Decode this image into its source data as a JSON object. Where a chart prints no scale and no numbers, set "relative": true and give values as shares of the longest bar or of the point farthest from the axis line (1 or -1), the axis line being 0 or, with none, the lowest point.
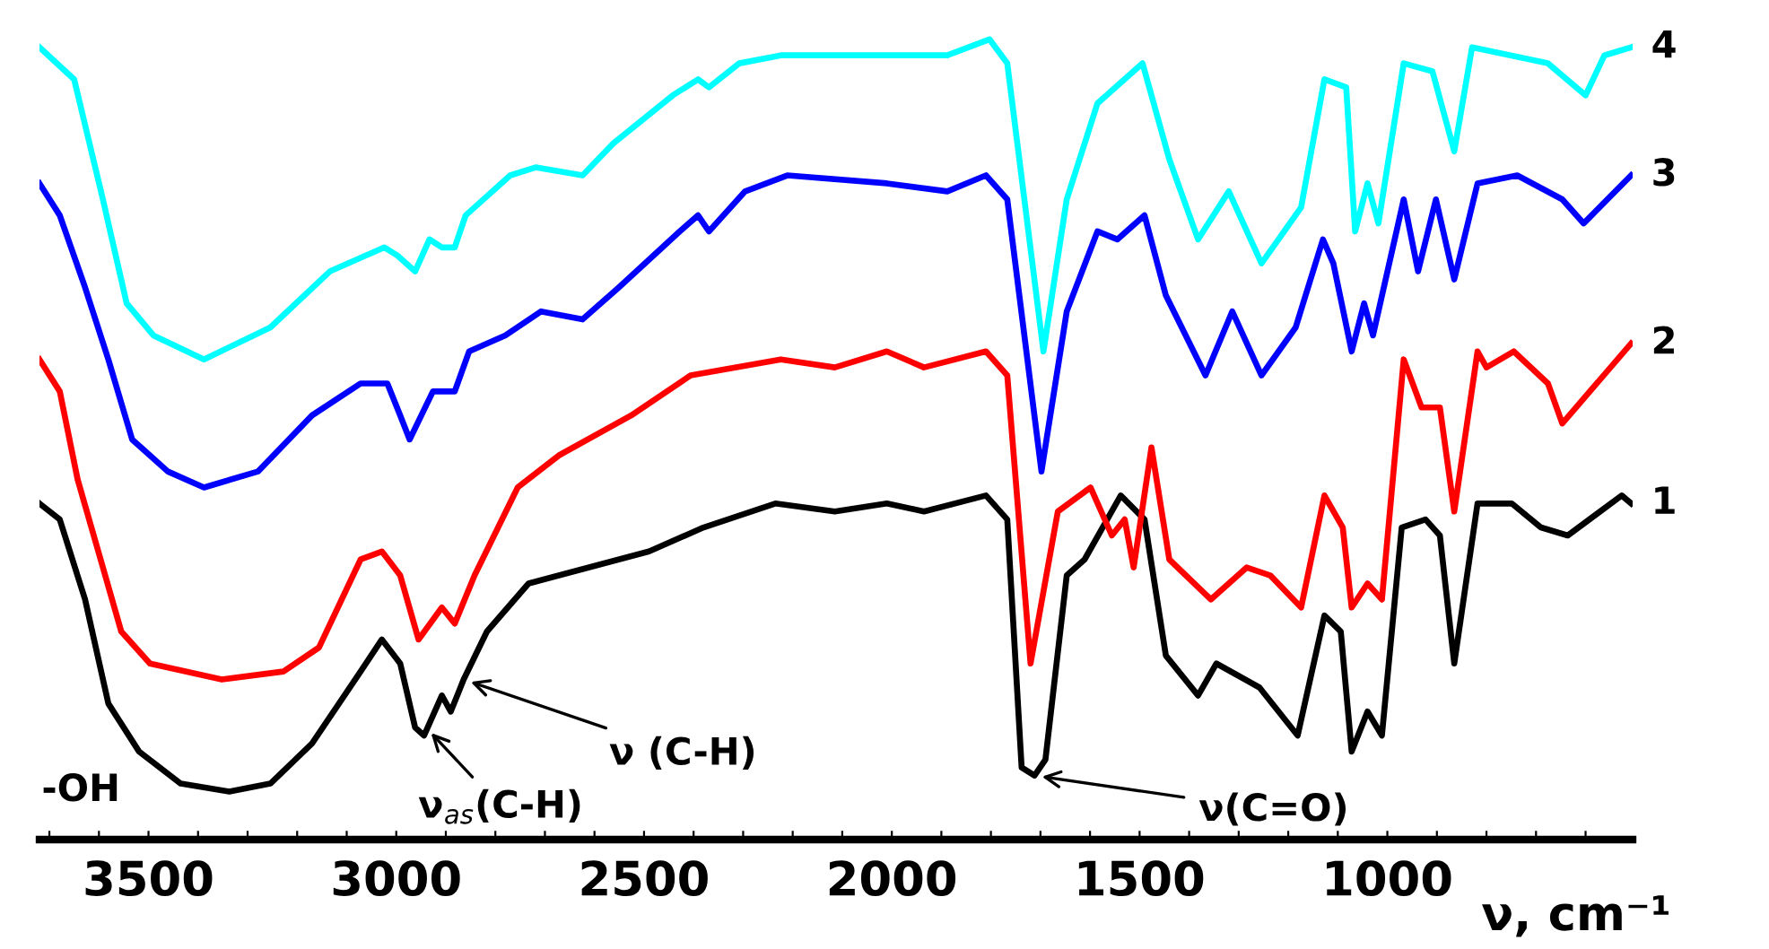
{
  "chart_data": {
    "type": "line",
    "relative": true,
    "xlabel": "ν, cm⁻¹",
    "xlim": [
      3720,
      505
    ],
    "xticks": [
      {
        "value": 3700,
        "label": null
      },
      {
        "value": 3600,
        "label": null
      },
      3500,
      {
        "value": 3400,
        "label": null
      },
      {
        "value": 3300,
        "label": null
      },
      {
        "value": 3200,
        "label": null
      },
      {
        "value": 3100,
        "label": null
      },
      3000,
      {
        "value": 2900,
        "label": null
      },
      {
        "value": 2800,
        "label": null
      },
      {
        "value": 2700,
        "label": null
      },
      {
        "value": 2600,
        "label": null
      },
      2500,
      {
        "value": 2400,
        "label": null
      },
      {
        "value": 2300,
        "label": null
      },
      {
        "value": 2200,
        "label": null
      },
      {
        "value": 2100,
        "label": null
      },
      2000,
      {
        "value": 1900,
        "label": null
      },
      {
        "value": 1800,
        "label": null
      },
      {
        "value": 1700,
        "label": null
      },
      {
        "value": 1600,
        "label": null
      },
      1500,
      {
        "value": 1400,
        "label": null
      },
      {
        "value": 1300,
        "label": null
      },
      {
        "value": 1200,
        "label": null
      },
      {
        "value": 1100,
        "label": null
      },
      1000,
      {
        "value": 900,
        "label": null
      },
      {
        "value": 800,
        "label": null
      },
      {
        "value": 700,
        "label": null
      },
      {
        "value": 600,
        "label": null
      }
    ],
    "grid": false,
    "legend": false,
    "marker": "none",
    "line_style": "solid",
    "annotations": [
      "-OH",
      {
        "text": "ν (C-H)",
        "x": 2864,
        "y": 0.2
      },
      {
        "text": "ν$_{as}$(C-H)",
        "x": 2940,
        "y": 0.14
      },
      {
        "text": "ν(C=O)",
        "x": 1712,
        "y": 0.08
      }
    ],
    "series": [
      {
        "name": "1",
        "color": "#000000",
        "x": [
          3720,
          3679,
          3628,
          3581,
          3519,
          3435,
          3337,
          3254,
          3170,
          3072,
          3029,
          2992,
          2962,
          2944,
          2908,
          2890,
          2864,
          2817,
          2733,
          2672,
          2490,
          2380,
          2235,
          2115,
          2010,
          1935,
          1810,
          1767,
          1738,
          1712,
          1690,
          1647,
          1611,
          1538,
          1490,
          1447,
          1382,
          1345,
          1258,
          1181,
          1127,
          1094,
          1072,
          1040,
          1011,
          971,
          923,
          894,
          865,
          818,
          749,
          690,
          636,
          527,
          508
        ],
        "values": [
          0.42,
          0.4,
          0.3,
          0.17,
          0.11,
          0.07,
          0.06,
          0.07,
          0.12,
          0.21,
          0.25,
          0.22,
          0.14,
          0.13,
          0.18,
          0.16,
          0.2,
          0.26,
          0.32,
          0.33,
          0.36,
          0.39,
          0.42,
          0.41,
          0.42,
          0.41,
          0.43,
          0.4,
          0.09,
          0.08,
          0.1,
          0.33,
          0.35,
          0.43,
          0.4,
          0.23,
          0.18,
          0.22,
          0.19,
          0.13,
          0.28,
          0.26,
          0.11,
          0.16,
          0.13,
          0.39,
          0.4,
          0.38,
          0.22,
          0.42,
          0.42,
          0.39,
          0.38,
          0.43,
          0.42
        ]
      },
      {
        "name": "2",
        "color": "#ff0000",
        "x": [
          3720,
          3679,
          3643,
          3592,
          3555,
          3497,
          3352,
          3228,
          3156,
          3072,
          3029,
          2992,
          2955,
          2908,
          2882,
          2842,
          2755,
          2672,
          2526,
          2406,
          2224,
          2115,
          2010,
          1935,
          1810,
          1767,
          1720,
          1665,
          1599,
          1556,
          1530,
          1512,
          1476,
          1440,
          1356,
          1284,
          1236,
          1174,
          1127,
          1090,
          1072,
          1040,
          1011,
          967,
          931,
          894,
          865,
          818,
          800,
          745,
          676,
          647,
          508
        ],
        "values": [
          0.6,
          0.56,
          0.45,
          0.34,
          0.26,
          0.22,
          0.2,
          0.21,
          0.24,
          0.35,
          0.36,
          0.33,
          0.25,
          0.29,
          0.27,
          0.33,
          0.44,
          0.48,
          0.53,
          0.58,
          0.6,
          0.59,
          0.61,
          0.59,
          0.61,
          0.58,
          0.22,
          0.41,
          0.44,
          0.38,
          0.4,
          0.34,
          0.49,
          0.35,
          0.3,
          0.34,
          0.33,
          0.29,
          0.43,
          0.39,
          0.29,
          0.32,
          0.3,
          0.6,
          0.54,
          0.54,
          0.41,
          0.61,
          0.59,
          0.61,
          0.57,
          0.52,
          0.62
        ]
      },
      {
        "name": "3",
        "color": "#0000ff",
        "x": [
          3720,
          3679,
          3628,
          3581,
          3533,
          3461,
          3388,
          3279,
          3170,
          3072,
          3018,
          2992,
          2973,
          2926,
          2882,
          2853,
          2780,
          2708,
          2624,
          2551,
          2428,
          2391,
          2369,
          2296,
          2211,
          2010,
          1888,
          1810,
          1767,
          1698,
          1647,
          1585,
          1545,
          1490,
          1447,
          1367,
          1313,
          1254,
          1185,
          1130,
          1109,
          1072,
          1047,
          1029,
          967,
          938,
          902,
          865,
          818,
          738,
          647,
          604,
          508
        ],
        "values": [
          0.82,
          0.78,
          0.69,
          0.6,
          0.5,
          0.46,
          0.44,
          0.46,
          0.53,
          0.57,
          0.57,
          0.53,
          0.5,
          0.56,
          0.56,
          0.61,
          0.63,
          0.66,
          0.65,
          0.69,
          0.76,
          0.78,
          0.76,
          0.81,
          0.83,
          0.82,
          0.81,
          0.83,
          0.8,
          0.46,
          0.66,
          0.76,
          0.75,
          0.78,
          0.68,
          0.58,
          0.66,
          0.58,
          0.64,
          0.75,
          0.72,
          0.61,
          0.67,
          0.63,
          0.8,
          0.71,
          0.8,
          0.7,
          0.82,
          0.83,
          0.8,
          0.77,
          0.83
        ]
      },
      {
        "name": "4",
        "color": "#00ffff",
        "x": [
          3720,
          3650,
          3592,
          3544,
          3490,
          3388,
          3254,
          3134,
          3024,
          2998,
          2962,
          2933,
          2908,
          2882,
          2860,
          2770,
          2719,
          2624,
          2562,
          2442,
          2391,
          2369,
          2308,
          2224,
          2010,
          1888,
          1803,
          1767,
          1694,
          1647,
          1585,
          1494,
          1440,
          1382,
          1320,
          1254,
          1174,
          1127,
          1083,
          1065,
          1040,
          1018,
          967,
          909,
          865,
          829,
          676,
          600,
          562,
          508
        ],
        "values": [
          0.99,
          0.95,
          0.8,
          0.67,
          0.63,
          0.6,
          0.64,
          0.71,
          0.74,
          0.73,
          0.71,
          0.75,
          0.74,
          0.74,
          0.78,
          0.83,
          0.84,
          0.83,
          0.87,
          0.93,
          0.95,
          0.94,
          0.97,
          0.98,
          0.98,
          0.98,
          1.0,
          0.97,
          0.61,
          0.8,
          0.92,
          0.97,
          0.85,
          0.75,
          0.81,
          0.72,
          0.79,
          0.95,
          0.94,
          0.76,
          0.82,
          0.77,
          0.97,
          0.96,
          0.86,
          0.99,
          0.97,
          0.93,
          0.98,
          0.99
        ]
      }
    ]
  }
}
